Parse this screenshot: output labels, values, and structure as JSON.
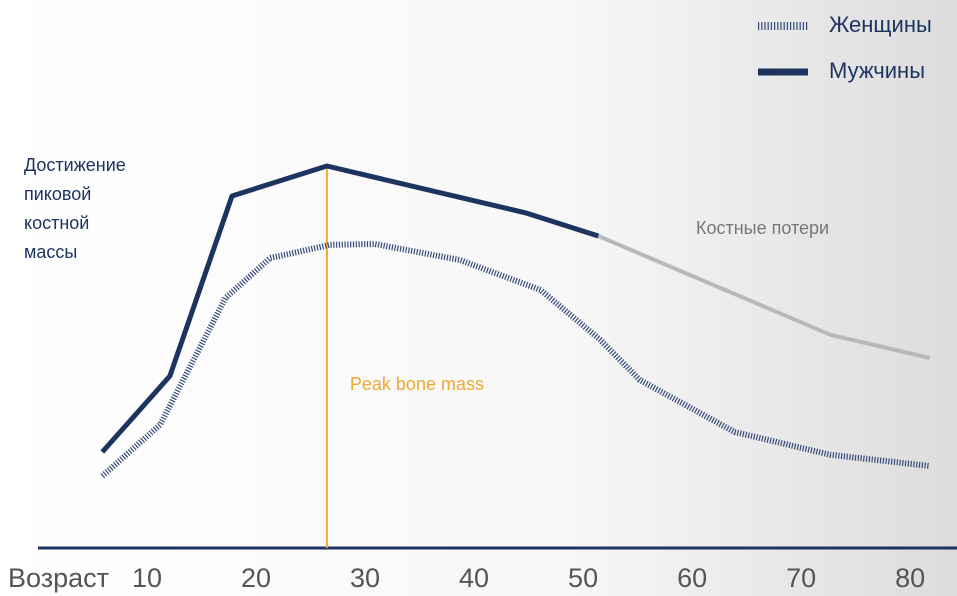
{
  "chart_data": {
    "type": "line",
    "xlabel": "Возраст",
    "xlim": [
      0,
      84.3
    ],
    "xticks": [
      10,
      20,
      30,
      40,
      50,
      60,
      70,
      80
    ],
    "ylim": [
      0,
      100
    ],
    "legend": "upper right",
    "side_note": [
      "Достижение",
      "пиковой",
      "костной",
      "массы"
    ],
    "peak": {
      "label": "Peak bone mass",
      "x": 26.5,
      "color": "#f0a830"
    },
    "series": [
      {
        "name": "Женщины",
        "color": "#34497a",
        "style": "dotted",
        "x": [
          5.9,
          11.2,
          17.2,
          21.3,
          26.8,
          30.9,
          38.7,
          46.1,
          51.6,
          55.2,
          63.9,
          72.7,
          81.8
        ],
        "values": [
          18,
          30.8,
          62.5,
          72.5,
          75.8,
          76,
          72,
          64.5,
          52,
          42,
          29,
          23.3,
          20.5
        ]
      },
      {
        "name": "Мужчины",
        "color": "#1d3461",
        "style": "solid",
        "x": [
          5.9,
          12.1,
          17.8,
          26.5,
          44.7,
          51.4
        ],
        "values": [
          24,
          43,
          88,
          95.5,
          83.8,
          78
        ]
      },
      {
        "name": "Костные потери",
        "color": "#b8b8b8",
        "style": "plain",
        "x": [
          51.4,
          72.7,
          81.8
        ],
        "values": [
          78,
          53.3,
          47.5
        ]
      }
    ]
  }
}
